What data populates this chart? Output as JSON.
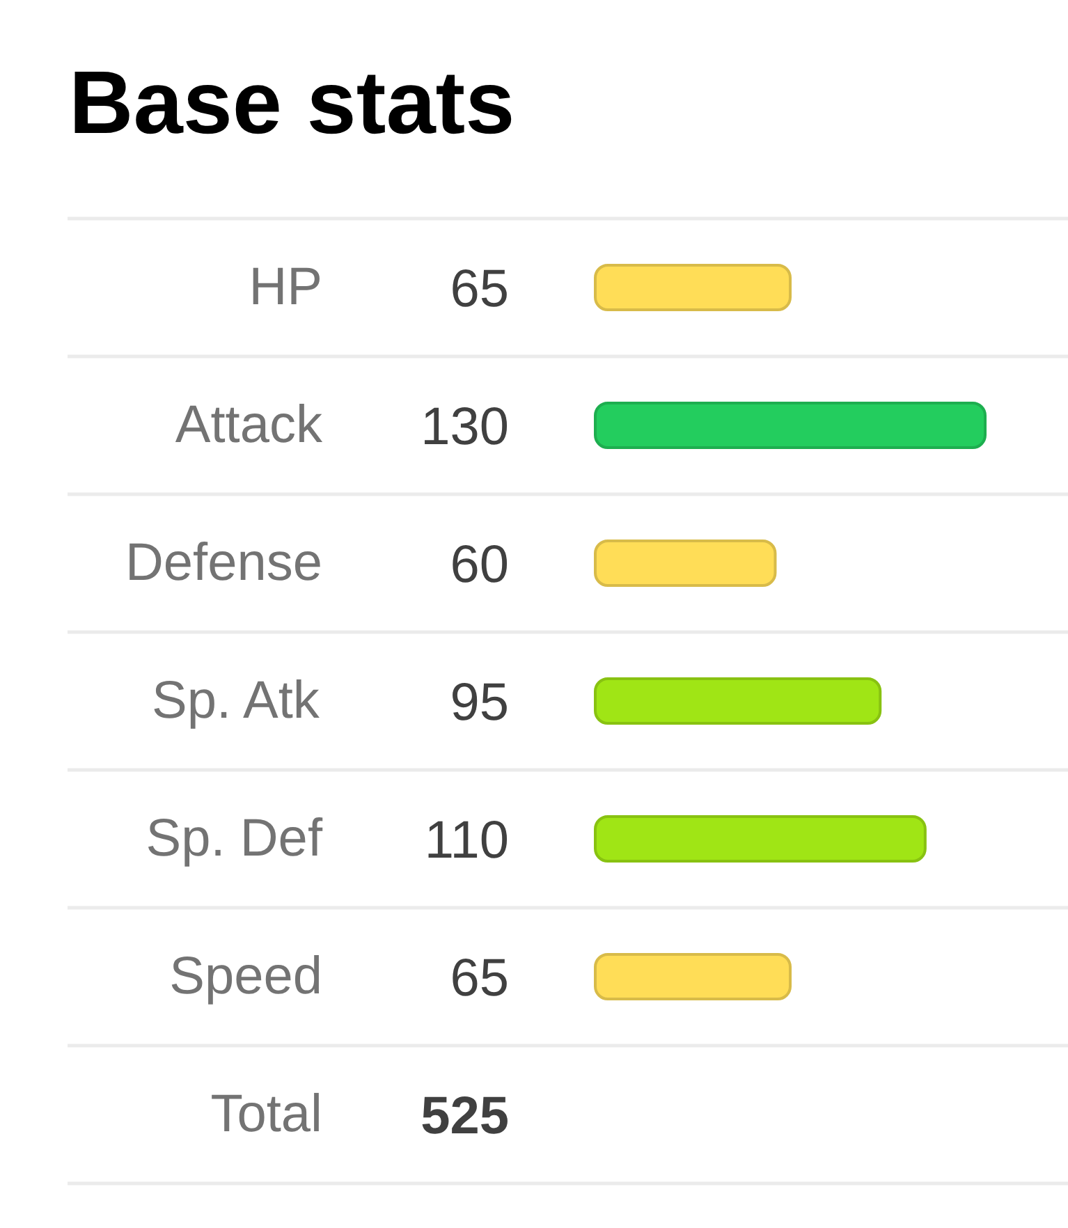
{
  "chart_data": {
    "type": "bar",
    "orientation": "horizontal",
    "title": "Base stats",
    "categories": [
      "HP",
      "Attack",
      "Defense",
      "Sp. Atk",
      "Sp. Def",
      "Speed"
    ],
    "values": [
      65,
      130,
      60,
      95,
      110,
      65
    ],
    "colors": [
      "#ffdd57",
      "#23cd5e",
      "#ffdd57",
      "#a0e515",
      "#a0e515",
      "#ffdd57"
    ],
    "data_labels": true,
    "grid": "y",
    "annotations": [
      "Total",
      "525"
    ]
  }
}
